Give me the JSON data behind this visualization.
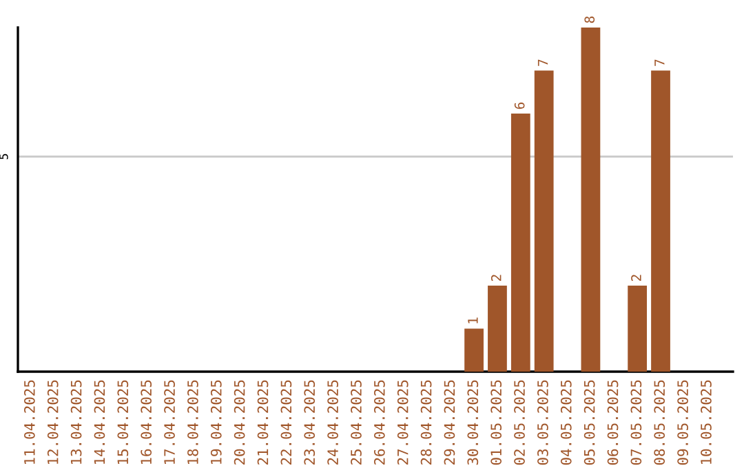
{
  "chart_data": {
    "type": "bar",
    "categories": [
      "11.04.2025",
      "12.04.2025",
      "13.04.2025",
      "14.04.2025",
      "15.04.2025",
      "16.04.2025",
      "17.04.2025",
      "18.04.2025",
      "19.04.2025",
      "20.04.2025",
      "21.04.2025",
      "22.04.2025",
      "23.04.2025",
      "24.04.2025",
      "25.04.2025",
      "26.04.2025",
      "27.04.2025",
      "28.04.2025",
      "29.04.2025",
      "30.04.2025",
      "01.05.2025",
      "02.05.2025",
      "03.05.2025",
      "04.05.2025",
      "05.05.2025",
      "06.05.2025",
      "07.05.2025",
      "08.05.2025",
      "09.05.2025",
      "10.05.2025"
    ],
    "values": [
      null,
      null,
      null,
      null,
      null,
      null,
      null,
      null,
      null,
      null,
      null,
      null,
      null,
      null,
      null,
      null,
      null,
      null,
      null,
      1,
      2,
      6,
      7,
      null,
      8,
      null,
      2,
      7,
      null,
      null
    ],
    "data_labels": true,
    "color": "#a0562a",
    "ylim": [
      0,
      8
    ],
    "ref_lines": [
      {
        "axis": "y",
        "value": 5,
        "label": "5",
        "color": "#cccccc"
      }
    ]
  }
}
